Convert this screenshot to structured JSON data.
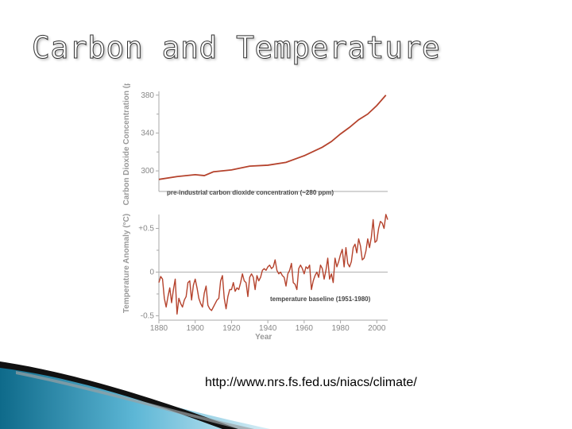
{
  "slide": {
    "title": "Carbon and Temperature",
    "source_url": "http://www.nrs.fs.fed.us/niacs/climate/"
  },
  "colors": {
    "series": "#b5432d",
    "axis": "#aaaaaa",
    "baseline": "#b0b0b0"
  },
  "chart_data": [
    {
      "type": "line",
      "ylabel": "Carbon Dioxide Concentration (ppm)",
      "ylim": [
        290,
        384
      ],
      "yticks": [
        300,
        340,
        380
      ],
      "yticklabels": [
        "300",
        "340",
        "380"
      ],
      "annotation": "pre-industrial carbon dioxide concentration (~280 ppm)",
      "series": [
        {
          "x": [
            1880,
            1890,
            1900,
            1905,
            1910,
            1920,
            1930,
            1940,
            1950,
            1960,
            1970,
            1975,
            1980,
            1985,
            1990,
            1995,
            2000,
            2005
          ],
          "values": [
            291,
            294,
            296,
            295,
            299,
            301,
            305,
            306,
            309,
            316,
            325,
            331,
            339,
            346,
            354,
            360,
            369,
            380
          ]
        }
      ]
    },
    {
      "type": "line",
      "xlabel": "Year",
      "ylabel": "Temperature Anomaly (°C)",
      "ylim": [
        -0.55,
        0.75
      ],
      "yticks": [
        0.5,
        0,
        -0.5
      ],
      "yticklabels": [
        "+0.5",
        "0",
        "-0.5"
      ],
      "xlim": [
        1880,
        2006
      ],
      "xticks": [
        1880,
        1900,
        1920,
        1940,
        1960,
        1980,
        2000
      ],
      "xticklabels": [
        "1880",
        "1900",
        "1920",
        "1940",
        "1960",
        "1980",
        "2000"
      ],
      "baseline": 0,
      "annotation": "temperature baseline (1951-1980)",
      "series": [
        {
          "x": [
            1880,
            1881,
            1882,
            1883,
            1884,
            1885,
            1886,
            1887,
            1888,
            1889,
            1890,
            1891,
            1892,
            1893,
            1894,
            1895,
            1896,
            1897,
            1898,
            1899,
            1900,
            1901,
            1902,
            1903,
            1904,
            1905,
            1906,
            1907,
            1908,
            1909,
            1910,
            1911,
            1912,
            1913,
            1914,
            1915,
            1916,
            1917,
            1918,
            1919,
            1920,
            1921,
            1922,
            1923,
            1924,
            1925,
            1926,
            1927,
            1928,
            1929,
            1930,
            1931,
            1932,
            1933,
            1934,
            1935,
            1936,
            1937,
            1938,
            1939,
            1940,
            1941,
            1942,
            1943,
            1944,
            1945,
            1946,
            1947,
            1948,
            1949,
            1950,
            1951,
            1952,
            1953,
            1954,
            1955,
            1956,
            1957,
            1958,
            1959,
            1960,
            1961,
            1962,
            1963,
            1964,
            1965,
            1966,
            1967,
            1968,
            1969,
            1970,
            1971,
            1972,
            1973,
            1974,
            1975,
            1976,
            1977,
            1978,
            1979,
            1980,
            1981,
            1982,
            1983,
            1984,
            1985,
            1986,
            1987,
            1988,
            1989,
            1990,
            1991,
            1992,
            1993,
            1994,
            1995,
            1996,
            1997,
            1998,
            1999,
            2000,
            2001,
            2002,
            2003,
            2004,
            2005,
            2006
          ],
          "values": [
            -0.12,
            -0.05,
            -0.08,
            -0.3,
            -0.4,
            -0.28,
            -0.18,
            -0.35,
            -0.2,
            -0.08,
            -0.48,
            -0.3,
            -0.36,
            -0.4,
            -0.32,
            -0.28,
            -0.12,
            -0.1,
            -0.32,
            -0.15,
            -0.08,
            -0.18,
            -0.3,
            -0.36,
            -0.4,
            -0.24,
            -0.16,
            -0.38,
            -0.42,
            -0.44,
            -0.4,
            -0.36,
            -0.32,
            -0.3,
            -0.1,
            -0.04,
            -0.3,
            -0.42,
            -0.28,
            -0.2,
            -0.2,
            -0.12,
            -0.22,
            -0.18,
            -0.2,
            -0.12,
            -0.02,
            -0.1,
            -0.12,
            -0.28,
            -0.06,
            -0.02,
            -0.06,
            -0.2,
            -0.04,
            -0.1,
            -0.06,
            0.02,
            0.04,
            0.02,
            0.06,
            0.08,
            0.04,
            0.06,
            0.14,
            0.02,
            -0.02,
            0,
            -0.04,
            -0.06,
            -0.16,
            -0.02,
            0.02,
            0.1,
            -0.12,
            -0.14,
            -0.2,
            0.04,
            0.08,
            0.04,
            -0.02,
            0.06,
            0.04,
            0.08,
            -0.2,
            -0.1,
            -0.04,
            0,
            -0.06,
            0.08,
            0.04,
            -0.08,
            0.02,
            0.16,
            -0.08,
            -0.02,
            -0.12,
            0.16,
            0.06,
            0.12,
            0.2,
            0.26,
            0.06,
            0.28,
            0.1,
            0.06,
            0.12,
            0.28,
            0.32,
            0.22,
            0.38,
            0.3,
            0.14,
            0.16,
            0.24,
            0.38,
            0.28,
            0.4,
            0.6,
            0.34,
            0.36,
            0.5,
            0.58,
            0.56,
            0.5,
            0.66,
            0.6
          ]
        }
      ]
    }
  ]
}
